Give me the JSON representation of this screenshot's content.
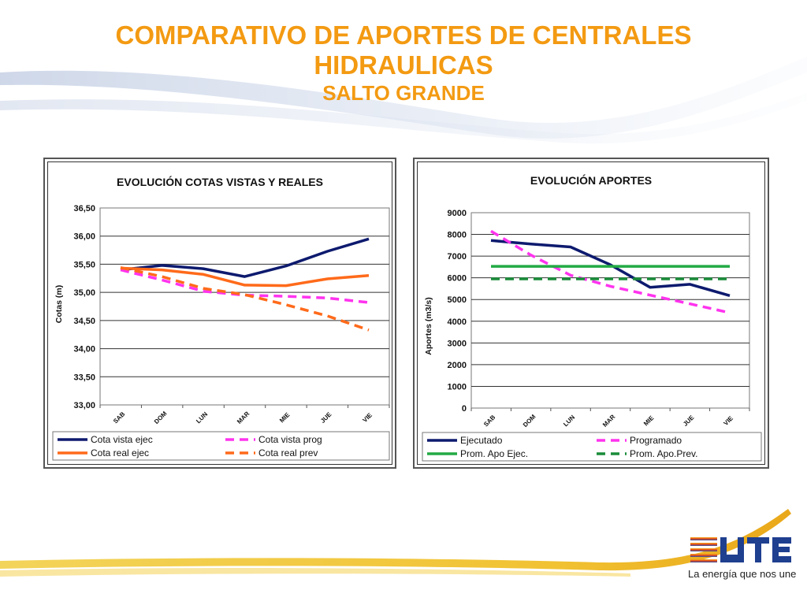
{
  "header": {
    "line1": "COMPARATIVO DE APORTES DE CENTRALES",
    "line2": "HIDRAULICAS",
    "line3": "SALTO GRANDE"
  },
  "brand": {
    "logo_text": "UTE",
    "tagline": "La energía que nos une",
    "accent_color": "#f39a12"
  },
  "chart_data": [
    {
      "type": "line",
      "title": "EVOLUCIÓN  COTAS VISTAS Y REALES",
      "xlabel": "",
      "ylabel": "Cotas  (m)",
      "categories": [
        "SAB",
        "DOM",
        "LUN",
        "MAR",
        "MIE",
        "JUE",
        "VIE"
      ],
      "ylim": [
        33.0,
        36.5
      ],
      "yticks": [
        "36,50",
        "36,00",
        "35,50",
        "35,00",
        "34,50",
        "34,00",
        "33,50",
        "33,00"
      ],
      "grid": true,
      "legend_position": "bottom",
      "series": [
        {
          "name": "Cota vista ejec",
          "color": "#0d1a6e",
          "style": "solid",
          "values": [
            35.4,
            35.48,
            35.42,
            35.28,
            35.47,
            35.73,
            35.95
          ]
        },
        {
          "name": "Cota vista prog",
          "color": "#ff33ee",
          "style": "dashed",
          "values": [
            35.4,
            35.22,
            35.02,
            34.95,
            34.93,
            34.9,
            34.82
          ]
        },
        {
          "name": "Cota real ejec",
          "color": "#ff6a1a",
          "style": "solid",
          "values": [
            35.43,
            35.4,
            35.32,
            35.13,
            35.12,
            35.24,
            35.3
          ]
        },
        {
          "name": "Cota real prev",
          "color": "#ff6a1a",
          "style": "dashed",
          "values": [
            35.44,
            35.28,
            35.07,
            34.96,
            34.78,
            34.58,
            34.33
          ]
        }
      ]
    },
    {
      "type": "line",
      "title": "EVOLUCIÓN  APORTES",
      "xlabel": "",
      "ylabel": "Aportes  (m3/s)",
      "categories": [
        "SAB",
        "DOM",
        "LUN",
        "MAR",
        "MIE",
        "JUE",
        "VIE"
      ],
      "ylim": [
        0,
        9000
      ],
      "yticks": [
        "9000",
        "8000",
        "7000",
        "6000",
        "5000",
        "4000",
        "3000",
        "2000",
        "1000",
        "0"
      ],
      "grid": true,
      "legend_position": "bottom",
      "series": [
        {
          "name": "Ejecutado",
          "color": "#0d1a6e",
          "style": "solid",
          "values": [
            7720,
            7560,
            7420,
            6600,
            5560,
            5700,
            5180
          ]
        },
        {
          "name": "Programado",
          "color": "#ff33ee",
          "style": "dashed",
          "values": [
            8150,
            7050,
            6120,
            5610,
            5200,
            4800,
            4390
          ]
        },
        {
          "name": "Prom. Apo Ejec.",
          "color": "#22aa44",
          "style": "solid",
          "values": [
            6530,
            6530,
            6530,
            6530,
            6530,
            6530,
            6530
          ]
        },
        {
          "name": "Prom. Apo.Prev.",
          "color": "#1a8c3a",
          "style": "dashed",
          "values": [
            5950,
            5950,
            5950,
            5950,
            5950,
            5950,
            5950
          ]
        }
      ]
    }
  ]
}
